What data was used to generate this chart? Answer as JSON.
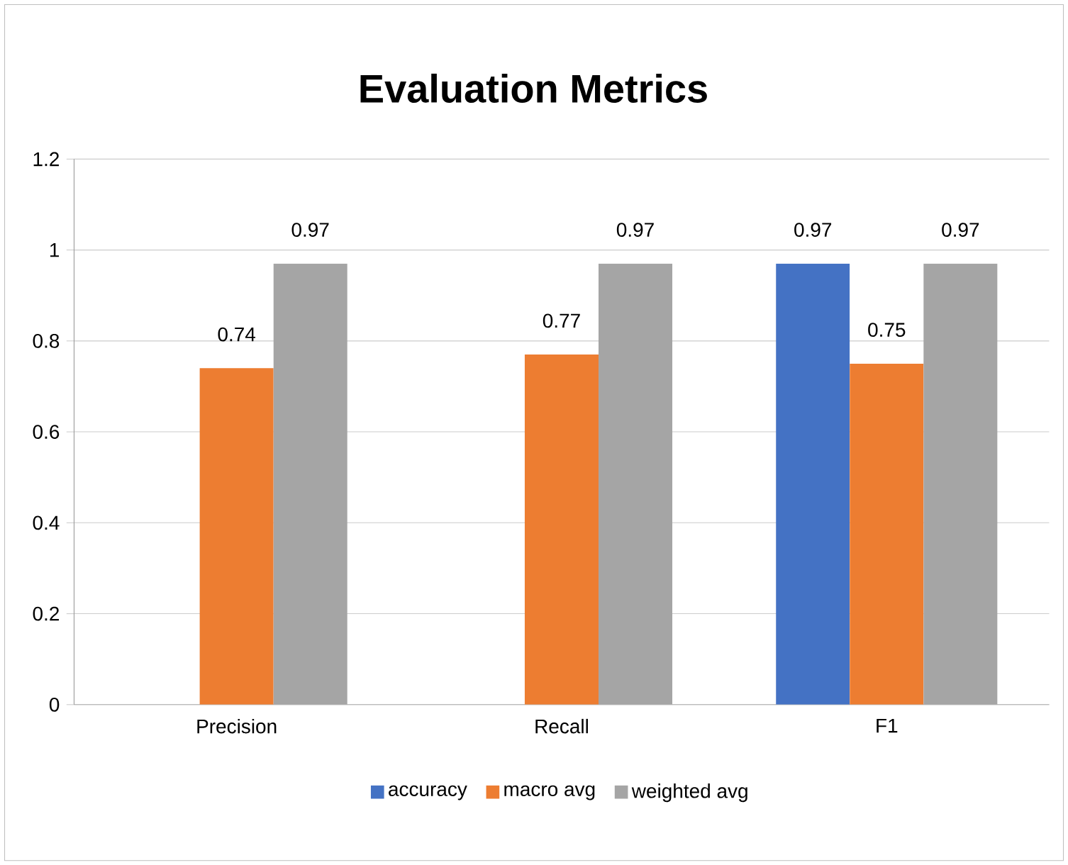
{
  "chart_data": {
    "type": "bar",
    "title": "Evaluation Metrics",
    "categories": [
      "Precision",
      "Recall",
      "F1"
    ],
    "series": [
      {
        "name": "accuracy",
        "color": "#4472c4",
        "values": [
          null,
          null,
          0.97
        ]
      },
      {
        "name": "macro avg",
        "color": "#ed7d31",
        "values": [
          0.74,
          0.77,
          0.75
        ]
      },
      {
        "name": "weighted avg",
        "color": "#a5a5a5",
        "values": [
          0.97,
          0.97,
          0.97
        ]
      }
    ],
    "ylim": [
      0,
      1.2
    ],
    "yticks": [
      0,
      0.2,
      0.4,
      0.6,
      0.8,
      1,
      1.2
    ],
    "grid": "y",
    "legend": "bottom",
    "data_labels": true
  }
}
